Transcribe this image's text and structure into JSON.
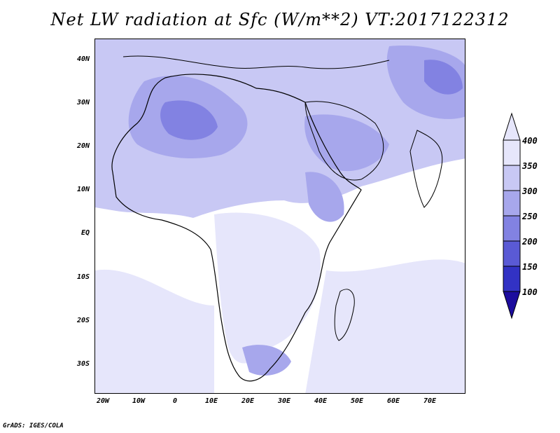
{
  "title": "Net LW radiation at Sfc (W/m**2) VT:2017122312",
  "credit": "GrADS: IGES/COLA",
  "y_axis": {
    "ticks": [
      "40N",
      "30N",
      "20N",
      "10N",
      "EQ",
      "10S",
      "20S",
      "30S"
    ]
  },
  "x_axis": {
    "ticks": [
      "20W",
      "10W",
      "0",
      "10E",
      "20E",
      "30E",
      "40E",
      "50E",
      "60E",
      "70E"
    ]
  },
  "colorbar": {
    "labels": [
      "400",
      "350",
      "300",
      "250",
      "200",
      "150",
      "100"
    ],
    "colors": [
      "#e6e6fb",
      "#c8c8f4",
      "#a7a7ec",
      "#8282e2",
      "#5a5ad5",
      "#3232c4",
      "#1c0c9e"
    ]
  },
  "chart_data": {
    "type": "heatmap",
    "title": "Net LW radiation at Sfc (W/m**2) VT:2017122312",
    "xlabel": "",
    "ylabel": "",
    "xlim": [
      -22,
      80
    ],
    "ylim": [
      -37,
      45
    ],
    "x_ticks": [
      -20,
      -10,
      0,
      10,
      20,
      30,
      40,
      50,
      60,
      70
    ],
    "y_ticks": [
      40,
      30,
      20,
      10,
      0,
      -10,
      -20,
      -30
    ],
    "levels": [
      100,
      150,
      200,
      250,
      300,
      350,
      400
    ],
    "level_colors": [
      "#1c0c9e",
      "#3232c4",
      "#5a5ad5",
      "#8282e2",
      "#a7a7ec",
      "#c8c8f4",
      "#e6e6fb"
    ],
    "colorbar_position": "right"
  }
}
